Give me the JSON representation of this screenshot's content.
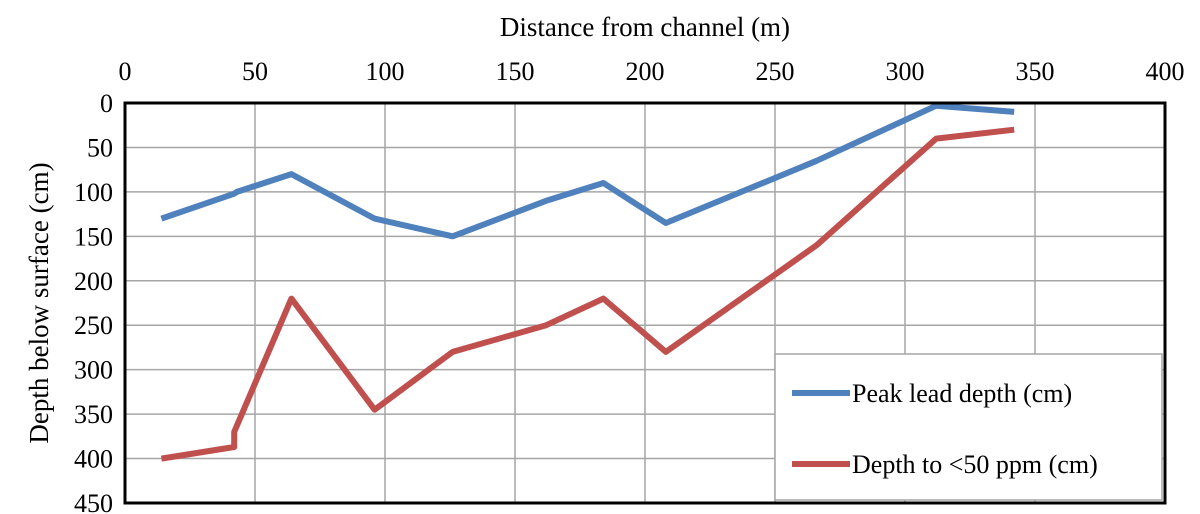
{
  "chart_data": {
    "type": "line",
    "title": "",
    "xlabel": "Distance from channel (m)",
    "ylabel": "Depth below surface (cm)",
    "xlim": [
      0,
      400
    ],
    "ylim": [
      0,
      450
    ],
    "y_inverted": true,
    "x_axis_position": "top",
    "x_ticks": [
      "0",
      "50",
      "100",
      "150",
      "200",
      "250",
      "300",
      "350",
      "400"
    ],
    "y_ticks": [
      "0",
      "50",
      "100",
      "150",
      "200",
      "250",
      "300",
      "350",
      "400",
      "450"
    ],
    "grid": true,
    "legend_position": "bottom-right",
    "series": [
      {
        "name": "Peak lead depth (cm)",
        "color": "#4f81bd",
        "x": [
          14,
          42,
          43,
          64,
          96,
          126,
          162,
          184,
          208,
          266,
          312,
          342
        ],
        "y": [
          130,
          102,
          100,
          80,
          130,
          150,
          110,
          90,
          135,
          65,
          3,
          10
        ]
      },
      {
        "name": "Depth to <50 ppm (cm)",
        "color": "#c0504d",
        "x": [
          14,
          42,
          42,
          64,
          96,
          126,
          162,
          184,
          208,
          266,
          312,
          342
        ],
        "y": [
          400,
          387,
          370,
          220,
          345,
          280,
          250,
          220,
          280,
          160,
          40,
          30
        ]
      }
    ]
  }
}
